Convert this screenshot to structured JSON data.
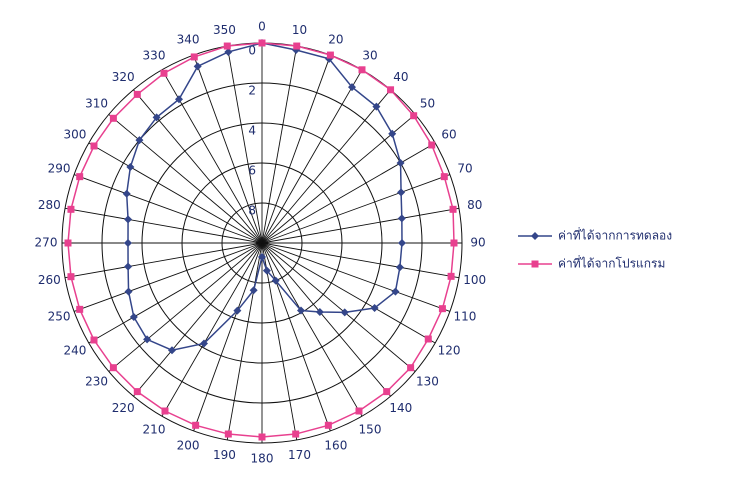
{
  "chart_data": {
    "type": "polar",
    "x": [
      0,
      10,
      20,
      30,
      40,
      50,
      60,
      70,
      80,
      90,
      100,
      110,
      120,
      130,
      140,
      150,
      160,
      170,
      180,
      190,
      200,
      210,
      220,
      230,
      240,
      250,
      260,
      270,
      280,
      290,
      300,
      310,
      320,
      330,
      340,
      350
    ],
    "ylim": [
      10,
      0
    ],
    "yticks": [
      0,
      2,
      4,
      6,
      8
    ],
    "series": [
      {
        "name": "ค่าที่ได้จากการทดลอง",
        "color": "#34468a",
        "marker": "diamond",
        "values": [
          0,
          0.2,
          0.2,
          1,
          1.1,
          1.5,
          2,
          2.6,
          2.9,
          3,
          3,
          2.9,
          3.5,
          4.6,
          5.5,
          6.1,
          8,
          8.6,
          9.3,
          7.6,
          6.4,
          4.2,
          3,
          2.5,
          2.6,
          2.9,
          3.2,
          3.3,
          3.2,
          2.8,
          2.4,
          2,
          1.8,
          1.7,
          0.6,
          0.3
        ]
      },
      {
        "name": "ค่าที่ได้จากโปรแกรม",
        "color": "#e8408f",
        "marker": "square",
        "values": [
          0,
          0,
          0,
          0,
          0,
          0.1,
          0.2,
          0.3,
          0.3,
          0.4,
          0.4,
          0.4,
          0.4,
          0.3,
          0.3,
          0.3,
          0.3,
          0.3,
          0.3,
          0.3,
          0.3,
          0.3,
          0.3,
          0.3,
          0.3,
          0.3,
          0.3,
          0.3,
          0.3,
          0.3,
          0.3,
          0.3,
          0.3,
          0.2,
          0.1,
          0
        ]
      }
    ]
  }
}
